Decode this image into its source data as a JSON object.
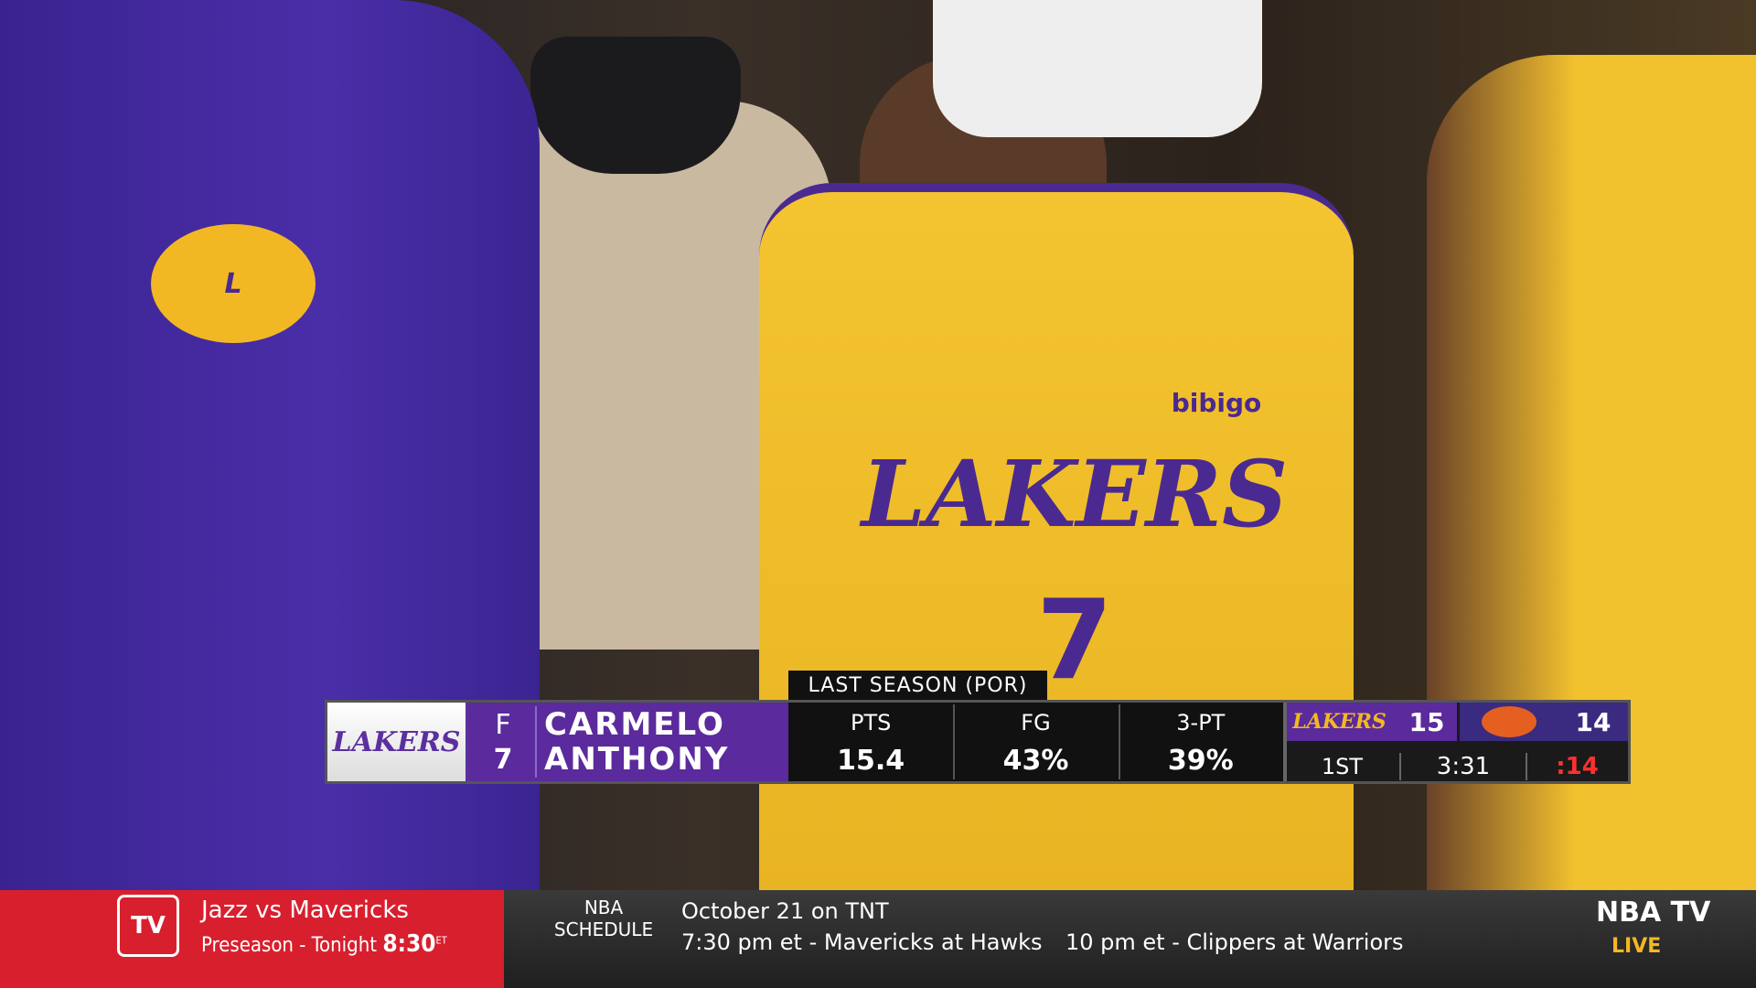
{
  "photo": {
    "jersey_text": "LAKERS",
    "jersey_number": "7",
    "sponsor": "bibigo"
  },
  "lower_third": {
    "tab": "LAST SEASON (POR)",
    "team_logo": "LAKERS",
    "position": "F",
    "number": "7",
    "first_name": "CARMELO",
    "last_name": "ANTHONY",
    "stats": [
      {
        "label": "PTS",
        "value": "15.4"
      },
      {
        "label": "FG",
        "value": "43%"
      },
      {
        "label": "3-PT",
        "value": "39%"
      }
    ]
  },
  "scorebug": {
    "home_logo": "LAKERS",
    "home_score": "15",
    "away_score": "14",
    "period": "1ST",
    "clock": "3:31",
    "shot_clock": ":14"
  },
  "ticker": {
    "logo": "TV",
    "promo_title": "Jazz vs Mavericks",
    "promo_sub": "Preseason - Tonight",
    "promo_time": "8:30",
    "promo_tz": "ET",
    "schedule_label": "NBA SCHEDULE",
    "schedule_date": "October 21 on TNT",
    "games": [
      "7:30 pm et - Mavericks at Hawks",
      "10 pm et - Clippers at Warriors"
    ],
    "network": "NBA TV",
    "live": "LIVE"
  }
}
